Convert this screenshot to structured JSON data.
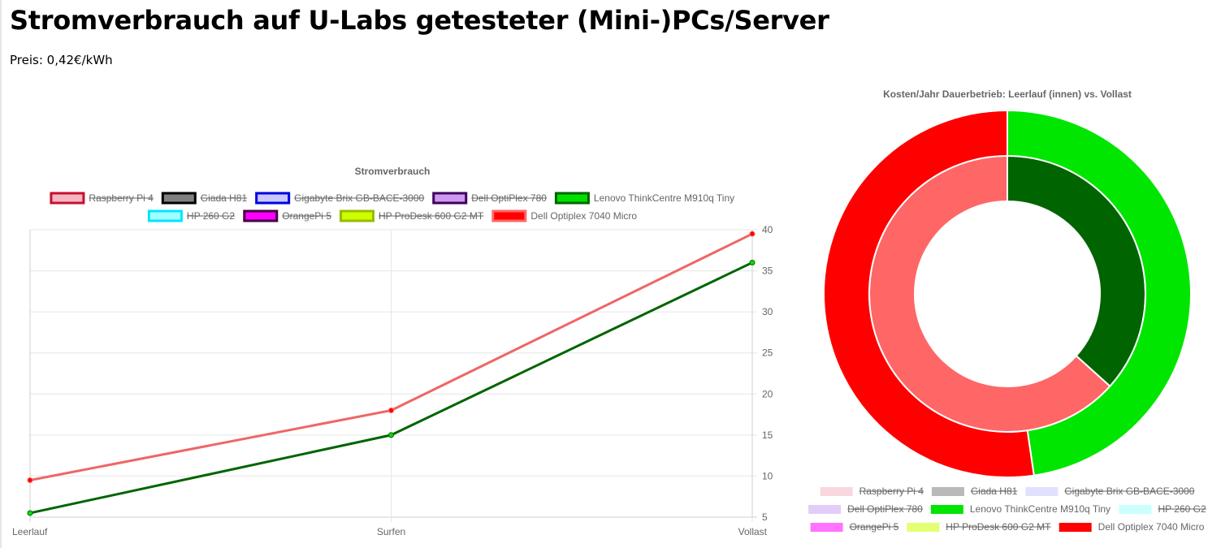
{
  "page": {
    "title": "Stromverbrauch auf U-Labs getesteter (Mini-)PCs/Server",
    "price_label": "Preis: 0,42€/kWh"
  },
  "chart_data": [
    {
      "type": "line",
      "title": "Stromverbrauch",
      "xlabel": "",
      "ylabel": "",
      "categories": [
        "Leerlauf",
        "Surfen",
        "Vollast"
      ],
      "y_ticks": [
        "5",
        "10",
        "15",
        "20",
        "25",
        "30",
        "35",
        "40"
      ],
      "ylim": [
        5,
        40
      ],
      "y_axis_side": "right",
      "grid": true,
      "legend_position": "top",
      "series": [
        {
          "name": "Raspberry Pi 4",
          "hidden": true,
          "fill": "#f4b6c2",
          "stroke": "#c8102e"
        },
        {
          "name": "Giada H81",
          "hidden": true,
          "fill": "#808080",
          "stroke": "#000000"
        },
        {
          "name": "Gigabyte Brix GB-BACE-3000",
          "hidden": true,
          "fill": "#c8c8ff",
          "stroke": "#0000e0"
        },
        {
          "name": "Dell OptiPlex 780",
          "hidden": true,
          "fill": "#cc99ee",
          "stroke": "#400060"
        },
        {
          "name": "Lenovo ThinkCentre M910q Tiny",
          "hidden": false,
          "fill": "#00e000",
          "stroke": "#006400",
          "line_color": "#006400",
          "values": [
            5.5,
            15,
            36
          ]
        },
        {
          "name": "HP 260 G2",
          "hidden": true,
          "fill": "#a0ffff",
          "stroke": "#00e5ff"
        },
        {
          "name": "OrangePi 5",
          "hidden": true,
          "fill": "#ff00ff",
          "stroke": "#400040"
        },
        {
          "name": "HP ProDesk 600 G2 MT",
          "hidden": true,
          "fill": "#ccff00",
          "stroke": "#99bb00"
        },
        {
          "name": "Dell Optiplex 7040 Micro",
          "hidden": false,
          "fill": "#ff0000",
          "stroke": "#ff6666",
          "line_color": "#ef6666",
          "values": [
            9.5,
            18,
            39.5
          ]
        }
      ]
    },
    {
      "type": "pie",
      "title": "Kosten/Jahr Dauerbetrieb: Leerlauf (innen) vs. Vollast",
      "legend_position": "bottom",
      "rings": [
        {
          "name": "Leerlauf",
          "position": "inner",
          "series": [
            "Lenovo ThinkCentre M910q Tiny",
            "Dell Optiplex 7040 Micro"
          ],
          "values": [
            5.5,
            9.5
          ],
          "colors": [
            "#006400",
            "#ff6666"
          ]
        },
        {
          "name": "Vollast",
          "position": "outer",
          "series": [
            "Lenovo ThinkCentre M910q Tiny",
            "Dell Optiplex 7040 Micro"
          ],
          "values": [
            36,
            39.5
          ],
          "colors": [
            "#00e600",
            "#ff0000"
          ]
        }
      ],
      "legend": [
        {
          "name": "Raspberry Pi 4",
          "hidden": true,
          "color": "#f4b6c2"
        },
        {
          "name": "Giada H81",
          "hidden": true,
          "color": "#808080"
        },
        {
          "name": "Gigabyte Brix GB-BACE-3000",
          "hidden": true,
          "color": "#c8c8ff"
        },
        {
          "name": "Dell OptiPlex 780",
          "hidden": true,
          "color": "#cca3f0"
        },
        {
          "name": "Lenovo ThinkCentre M910q Tiny",
          "hidden": false,
          "color": "#00e600"
        },
        {
          "name": "HP 260 G2",
          "hidden": true,
          "color": "#a0ffff"
        },
        {
          "name": "OrangePi 5",
          "hidden": true,
          "color": "#ff00ff"
        },
        {
          "name": "HP ProDesk 600 G2 MT",
          "hidden": true,
          "color": "#ccff00"
        },
        {
          "name": "Dell Optiplex 7040 Micro",
          "hidden": false,
          "color": "#ff0000"
        }
      ]
    }
  ]
}
